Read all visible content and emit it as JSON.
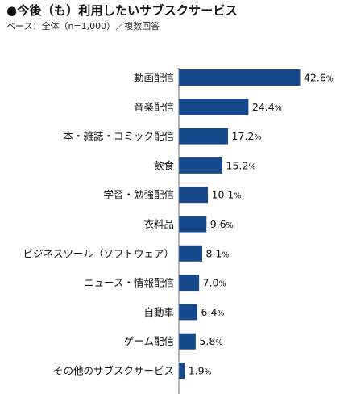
{
  "header": {
    "title": "●今後（も）利用したいサブスクサービス",
    "subtitle": "ベース：全体（n=1,000）／複数回答"
  },
  "colors": {
    "bar": "#164a8c",
    "axis": "#6b6b6b",
    "text": "#111111"
  },
  "chart_data": {
    "type": "bar",
    "orientation": "horizontal",
    "categories": [
      "動画配信",
      "音楽配信",
      "本・雑誌・コミック配信",
      "飲食",
      "学習・勉強配信",
      "衣料品",
      "ビジネスツール（ソフトウェア）",
      "ニュース・情報配信",
      "自動車",
      "ゲーム配信",
      "その他のサブスクサービス"
    ],
    "values": [
      42.6,
      24.4,
      17.2,
      15.2,
      10.1,
      9.6,
      8.1,
      7.0,
      6.4,
      5.8,
      1.9
    ],
    "value_labels": [
      "42.6",
      "24.4",
      "17.2",
      "15.2",
      "10.1",
      "9.6",
      "8.1",
      "7.0",
      "6.4",
      "5.8",
      "1.9"
    ],
    "unit": "%",
    "xlim": [
      0,
      50
    ],
    "grid": false,
    "legend": "none"
  }
}
